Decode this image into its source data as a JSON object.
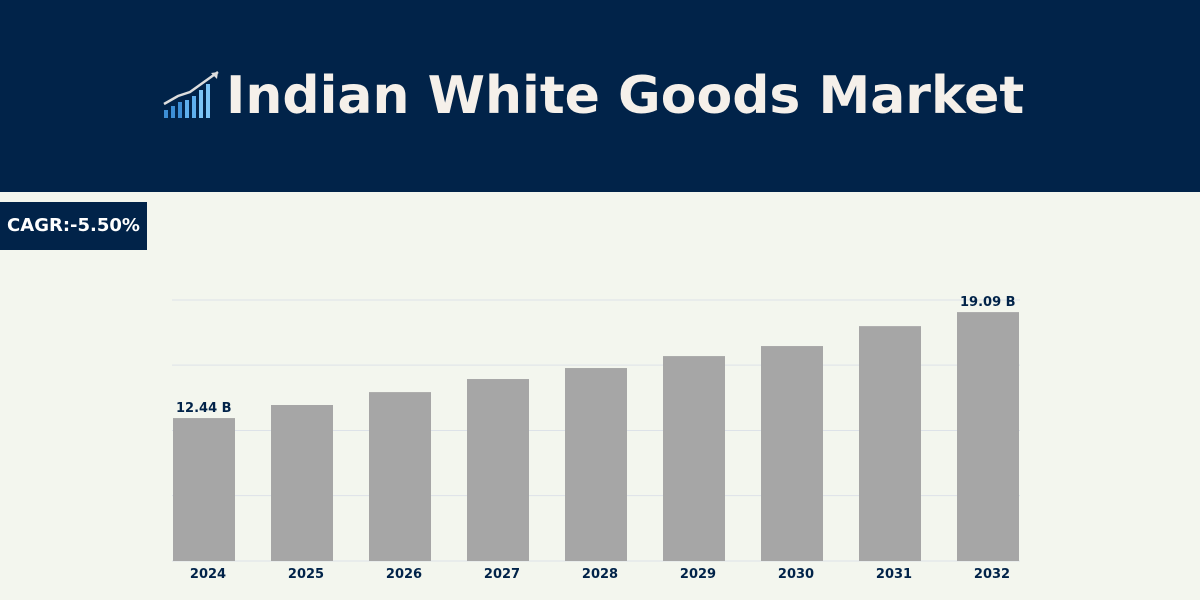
{
  "chart_data": {
    "type": "bar",
    "title": "Indian White Goods Market",
    "annotation": "CAGR:-5.50%",
    "categories": [
      "2024",
      "2025",
      "2026",
      "2027",
      "2028",
      "2029",
      "2030",
      "2031",
      "2032"
    ],
    "values": [
      12.44,
      13.26,
      14.07,
      14.89,
      15.58,
      16.33,
      16.96,
      18.21,
      19.09
    ],
    "value_labels": [
      "12.44 B",
      null,
      null,
      null,
      null,
      null,
      null,
      null,
      "19.09 B"
    ],
    "color": "#a6a6a6",
    "ylim": [
      3.47,
      19.85
    ],
    "yticks": [
      3.47,
      7.57,
      11.66,
      15.76,
      19.85
    ],
    "grid": true
  }
}
